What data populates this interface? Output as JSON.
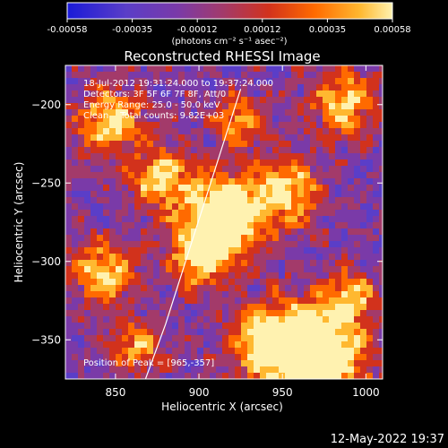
{
  "colorbar": {
    "ticks": [
      "-0.00058",
      "-0.00035",
      "-0.00012",
      "0.00012",
      "0.00035",
      "0.00058"
    ],
    "units_line": "(photons cm⁻² s⁻¹ asec⁻²)",
    "colors": [
      "#1a1ad8",
      "#5a3ec8",
      "#7a3aa8",
      "#a33a6a",
      "#d2321c",
      "#ff6a00",
      "#ffb830",
      "#fff2b0"
    ]
  },
  "chart_data": {
    "type": "heatmap",
    "title": "Reconstructed RHESSI Image",
    "xlabel": "Heliocentric X (arcsec)",
    "ylabel": "Heliocentric Y (arcsec)",
    "xlim": [
      820,
      1010
    ],
    "ylim": [
      -375,
      -175
    ],
    "xticks": [
      850,
      900,
      950,
      1000
    ],
    "yticks": [
      -200,
      -250,
      -300,
      -350
    ],
    "value_range": [
      -0.00058,
      0.00058
    ],
    "limb_curve": {
      "x": [
        868,
        880,
        895,
        910,
        925
      ],
      "y": [
        -375,
        -340,
        -290,
        -240,
        -190
      ]
    },
    "peak": {
      "x": 965,
      "y": -357
    },
    "annotations": [
      "18-Jul-2012 19:31:24.000 to 19:37:24.000",
      "Detectors: 3F 5F 6F 7F 8F, Att/0",
      "Energy Range: 25.0 - 50.0 keV",
      "Clean    Total counts: 9.82E+03"
    ],
    "peak_label": "Position of Peak = [965,-357]"
  },
  "footer": {
    "timestamp": "12-May-2022 19:37"
  }
}
